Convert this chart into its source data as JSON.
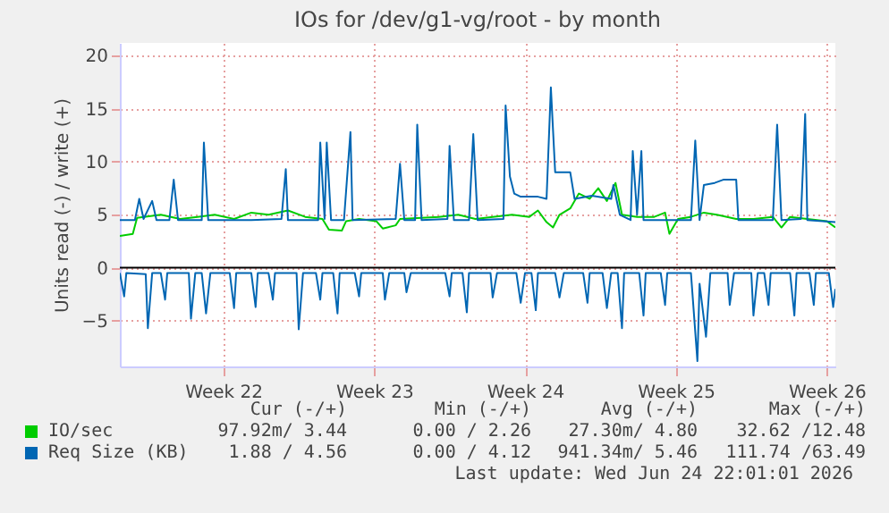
{
  "chart_data": {
    "type": "line",
    "title": "IOs for /dev/g1-vg/root - by month",
    "ylabel": "Units read (-) / write (+)",
    "xlim": [
      "2026-05-23T04:48",
      "2026-06-25T09:36"
    ],
    "xticks": [
      {
        "value": "2026-05-28",
        "label": "Week 22"
      },
      {
        "value": "2026-06-04",
        "label": "Week 23"
      },
      {
        "value": "2026-06-11",
        "label": "Week 24"
      },
      {
        "value": "2026-06-18",
        "label": "Week 25"
      },
      {
        "value": "2026-06-25",
        "label": "Week 26"
      }
    ],
    "ylim": [
      -9.3,
      21.2
    ],
    "yticks": [
      -5,
      0,
      5,
      10,
      15,
      20
    ],
    "grid": true,
    "legend": "bottom",
    "ref_lines": [
      {
        "axis": "y",
        "value": 0,
        "color": "#000000"
      }
    ],
    "series": [
      {
        "name": "IO/sec",
        "color": "#00cc00",
        "x": [
          "2026-05-23T04:48",
          "2026-05-23T19:12",
          "2026-05-24T00:00",
          "2026-05-25T02:24",
          "2026-05-26T00:00",
          "2026-05-26T19:12",
          "2026-05-27T14:24",
          "2026-05-28T12:00",
          "2026-05-29T07:12",
          "2026-05-30T02:24",
          "2026-05-31T00:00",
          "2026-05-31T19:12",
          "2026-06-01T14:24",
          "2026-06-01T21:36",
          "2026-06-02T12:00",
          "2026-06-02T16:48",
          "2026-06-03T07:12",
          "2026-06-04T02:24",
          "2026-06-04T09:36",
          "2026-06-05T00:00",
          "2026-06-05T04:48",
          "2026-06-06T04:48",
          "2026-06-07T00:00",
          "2026-06-07T21:36",
          "2026-06-08T16:48",
          "2026-06-09T12:00",
          "2026-06-10T09:36",
          "2026-06-11T04:48",
          "2026-06-11T14:24",
          "2026-06-12T00:00",
          "2026-06-12T07:12",
          "2026-06-12T14:24",
          "2026-06-13T02:24",
          "2026-06-13T12:00",
          "2026-06-14T00:00",
          "2026-06-14T09:36",
          "2026-06-14T19:12",
          "2026-06-15T04:48",
          "2026-06-15T12:00",
          "2026-06-16T04:48",
          "2026-06-17T00:00",
          "2026-06-17T12:00",
          "2026-06-17T16:48",
          "2026-06-18T02:24",
          "2026-06-18T16:48",
          "2026-06-19T07:12",
          "2026-06-19T21:36",
          "2026-06-20T19:12",
          "2026-06-21T14:24",
          "2026-06-22T12:00",
          "2026-06-22T21:36",
          "2026-06-23T07:12",
          "2026-06-24T02:24",
          "2026-06-25T00:00",
          "2026-06-25T09:36"
        ],
        "values": [
          3.0,
          3.2,
          4.7,
          5.0,
          4.6,
          4.8,
          5.0,
          4.6,
          5.2,
          5.0,
          5.4,
          4.8,
          4.6,
          3.6,
          3.5,
          4.4,
          4.6,
          4.4,
          3.7,
          4.0,
          4.6,
          4.7,
          4.8,
          5.0,
          4.6,
          4.8,
          5.0,
          4.8,
          5.4,
          4.3,
          3.8,
          5.0,
          5.6,
          7.0,
          6.5,
          7.5,
          6.3,
          8.0,
          5.0,
          4.8,
          4.8,
          5.2,
          3.2,
          4.6,
          4.8,
          5.2,
          5.0,
          4.6,
          4.6,
          4.8,
          3.8,
          4.8,
          4.6,
          4.4,
          3.8
        ]
      },
      {
        "name": "Req Size (KB)",
        "color": "#0066b3",
        "x": [
          "2026-05-23T04:48",
          "2026-05-23T21:36",
          "2026-05-24T02:24",
          "2026-05-24T07:12",
          "2026-05-24T16:48",
          "2026-05-24T21:36",
          "2026-05-25T12:00",
          "2026-05-25T16:48",
          "2026-05-25T21:36",
          "2026-05-27T00:00",
          "2026-05-27T02:24",
          "2026-05-27T07:12",
          "2026-05-29T07:12",
          "2026-05-30T16:48",
          "2026-05-30T21:36",
          "2026-05-31T00:00",
          "2026-06-01T09:36",
          "2026-06-01T12:00",
          "2026-06-01T16:48",
          "2026-06-01T19:12",
          "2026-06-02T00:00",
          "2026-06-02T14:24",
          "2026-06-02T21:36",
          "2026-06-03T00:00",
          "2026-06-05T00:00",
          "2026-06-05T04:48",
          "2026-06-05T09:36",
          "2026-06-05T21:36",
          "2026-06-06T00:00",
          "2026-06-06T04:48",
          "2026-06-07T09:36",
          "2026-06-07T12:00",
          "2026-06-07T16:48",
          "2026-06-08T09:36",
          "2026-06-08T14:24",
          "2026-06-08T19:12",
          "2026-06-10T00:00",
          "2026-06-10T02:24",
          "2026-06-10T07:12",
          "2026-06-10T12:00",
          "2026-06-10T19:12",
          "2026-06-11T14:24",
          "2026-06-12T00:00",
          "2026-06-12T04:48",
          "2026-06-12T09:36",
          "2026-06-13T02:24",
          "2026-06-13T07:12",
          "2026-06-14T02:24",
          "2026-06-15T00:00",
          "2026-06-15T02:24",
          "2026-06-15T09:36",
          "2026-06-15T21:36",
          "2026-06-16T00:00",
          "2026-06-16T04:48",
          "2026-06-16T09:36",
          "2026-06-16T12:00",
          "2026-06-18T16:48",
          "2026-06-18T21:36",
          "2026-06-19T02:24",
          "2026-06-19T07:12",
          "2026-06-19T19:12",
          "2026-06-20T04:48",
          "2026-06-20T19:12",
          "2026-06-20T21:36",
          "2026-06-22T12:00",
          "2026-06-22T16:48",
          "2026-06-22T21:36",
          "2026-06-23T19:12",
          "2026-06-24T00:00",
          "2026-06-24T02:24",
          "2026-06-25T09:36"
        ],
        "values": [
          4.5,
          4.5,
          6.5,
          4.6,
          6.3,
          4.5,
          4.5,
          8.3,
          4.5,
          4.5,
          11.8,
          4.5,
          4.5,
          4.6,
          9.3,
          4.5,
          4.5,
          11.8,
          4.6,
          11.8,
          4.5,
          4.5,
          12.8,
          4.5,
          4.6,
          9.8,
          4.5,
          4.5,
          13.5,
          4.5,
          4.6,
          11.5,
          4.5,
          4.5,
          12.6,
          4.5,
          4.6,
          15.3,
          8.6,
          7.0,
          6.7,
          6.7,
          6.5,
          17.0,
          9.0,
          9.0,
          6.5,
          6.8,
          6.5,
          7.8,
          5.0,
          4.5,
          11.0,
          5.0,
          11.0,
          4.5,
          4.5,
          12.0,
          4.5,
          7.8,
          8.0,
          8.3,
          8.3,
          4.5,
          4.5,
          13.5,
          4.5,
          4.6,
          14.5,
          4.5,
          4.3
        ]
      },
      {
        "color": "#0066b3",
        "x": [
          "2026-05-23T04:48",
          "2026-05-23T09:36",
          "2026-05-23T12:00",
          "2026-05-24T09:36",
          "2026-05-24T12:00",
          "2026-05-24T16:48",
          "2026-05-25T02:24",
          "2026-05-25T07:12",
          "2026-05-25T09:36",
          "2026-05-26T09:36",
          "2026-05-26T12:00",
          "2026-05-26T16:48",
          "2026-05-27T00:00",
          "2026-05-27T04:48",
          "2026-05-27T09:36",
          "2026-05-28T07:12",
          "2026-05-28T12:00",
          "2026-05-28T14:24",
          "2026-05-29T07:12",
          "2026-05-29T12:00",
          "2026-05-29T14:24",
          "2026-05-30T02:24",
          "2026-05-30T07:12",
          "2026-05-30T09:36",
          "2026-05-31T09:36",
          "2026-05-31T12:00",
          "2026-05-31T16:48",
          "2026-06-01T07:12",
          "2026-06-01T12:00",
          "2026-06-01T14:24",
          "2026-06-02T02:24",
          "2026-06-02T07:12",
          "2026-06-02T09:36",
          "2026-06-03T02:24",
          "2026-06-03T07:12",
          "2026-06-03T09:36",
          "2026-06-04T09:36",
          "2026-06-04T12:00",
          "2026-06-04T16:48",
          "2026-06-05T09:36",
          "2026-06-05T12:00",
          "2026-06-05T16:48",
          "2026-06-07T07:12",
          "2026-06-07T12:00",
          "2026-06-07T14:24",
          "2026-06-08T02:24",
          "2026-06-08T07:12",
          "2026-06-08T09:36",
          "2026-06-09T09:36",
          "2026-06-09T12:00",
          "2026-06-09T16:48",
          "2026-06-10T14:24",
          "2026-06-10T19:12",
          "2026-06-11T00:00",
          "2026-06-11T07:12",
          "2026-06-11T12:00",
          "2026-06-11T14:24",
          "2026-06-12T09:36",
          "2026-06-12T14:24",
          "2026-06-12T19:12",
          "2026-06-13T16:48",
          "2026-06-13T21:36",
          "2026-06-14T00:00",
          "2026-06-14T14:24",
          "2026-06-14T19:12",
          "2026-06-15T00:00",
          "2026-06-15T07:12",
          "2026-06-15T12:00",
          "2026-06-15T14:24",
          "2026-06-16T07:12",
          "2026-06-16T12:00",
          "2026-06-16T14:24",
          "2026-06-17T07:12",
          "2026-06-17T12:00",
          "2026-06-17T14:24",
          "2026-06-18T16:48",
          "2026-06-19T00:00",
          "2026-06-19T02:24",
          "2026-06-19T09:36",
          "2026-06-19T14:24",
          "2026-06-20T09:36",
          "2026-06-20T12:00",
          "2026-06-20T16:48",
          "2026-06-21T12:00",
          "2026-06-21T14:24",
          "2026-06-21T19:12",
          "2026-06-22T02:24",
          "2026-06-22T07:12",
          "2026-06-22T09:36",
          "2026-06-23T07:12",
          "2026-06-23T12:00",
          "2026-06-23T14:24",
          "2026-06-24T04:48",
          "2026-06-24T09:36",
          "2026-06-24T12:00",
          "2026-06-25T02:24",
          "2026-06-25T07:12",
          "2026-06-25T09:36"
        ],
        "values": [
          -0.5,
          -2.7,
          -0.5,
          -0.6,
          -5.7,
          -0.5,
          -0.5,
          -3.0,
          -0.5,
          -0.5,
          -4.8,
          -0.5,
          -0.5,
          -4.3,
          -0.5,
          -0.5,
          -3.8,
          -0.5,
          -0.5,
          -3.7,
          -0.5,
          -0.5,
          -3.0,
          -0.5,
          -0.5,
          -5.8,
          -0.5,
          -0.5,
          -3.0,
          -0.5,
          -0.5,
          -4.3,
          -0.5,
          -0.5,
          -2.7,
          -0.5,
          -0.5,
          -3.0,
          -0.5,
          -0.5,
          -2.3,
          -0.5,
          -0.5,
          -2.7,
          -0.5,
          -0.5,
          -4.2,
          -0.5,
          -0.5,
          -2.8,
          -0.5,
          -0.5,
          -3.3,
          -0.5,
          -0.5,
          -4.0,
          -0.5,
          -0.5,
          -2.8,
          -0.5,
          -0.5,
          -3.3,
          -0.5,
          -0.5,
          -3.8,
          -0.5,
          -0.5,
          -5.7,
          -0.5,
          -0.5,
          -4.5,
          -0.5,
          -0.5,
          -3.5,
          -0.5,
          -0.5,
          -8.8,
          -1.5,
          -6.5,
          -0.5,
          -0.5,
          -3.5,
          -0.5,
          -0.5,
          -4.5,
          -0.5,
          -0.5,
          -3.5,
          -0.5,
          -0.5,
          -4.5,
          -0.5,
          -0.5,
          -3.5,
          -0.5,
          -0.5,
          -3.7,
          -2.0
        ]
      }
    ],
    "annotations": [
      "Cur (-/+)",
      "Min (-/+)",
      "Avg (-/+)",
      "Max (-/+)",
      "97.92m/ 3.44",
      "0.00 / 2.26",
      "27.30m/ 4.80",
      "32.62 /12.48",
      "1.88 / 4.56",
      "0.00 / 4.12",
      "941.34m/ 5.46",
      "111.74 /63.49",
      "Last update: Wed Jun 24 22:01:01 2026"
    ]
  }
}
